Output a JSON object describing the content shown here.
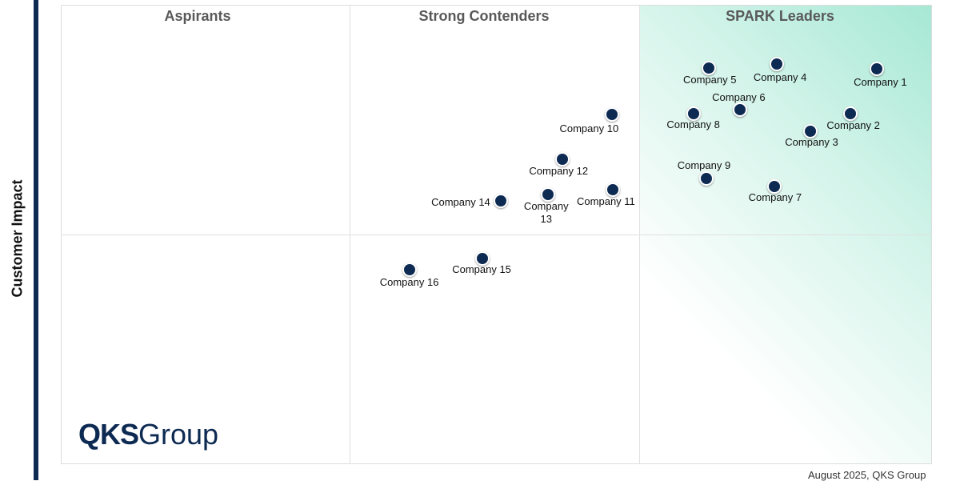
{
  "chart_data": {
    "type": "scatter",
    "title": "",
    "xlabel": "",
    "ylabel": "Customer Impact",
    "xlim": [
      0,
      100
    ],
    "ylim": [
      0,
      100
    ],
    "grid": true,
    "quadrants": [
      "Aspirants",
      "Strong Contenders",
      "SPARK Leaders"
    ],
    "points": [
      {
        "label": "Company 1",
        "x": 93.7,
        "y": 86.1
      },
      {
        "label": "Company 2",
        "x": 90.6,
        "y": 76.3
      },
      {
        "label": "Company 3",
        "x": 86.0,
        "y": 72.5
      },
      {
        "label": "Company 4",
        "x": 82.2,
        "y": 87.1
      },
      {
        "label": "Company 5",
        "x": 74.4,
        "y": 86.2
      },
      {
        "label": "Company 6",
        "x": 78.0,
        "y": 77.2
      },
      {
        "label": "Company 7",
        "x": 81.9,
        "y": 60.5
      },
      {
        "label": "Company 8",
        "x": 72.6,
        "y": 76.3
      },
      {
        "label": "Company 9",
        "x": 74.1,
        "y": 62.2
      },
      {
        "label": "Company 10",
        "x": 63.3,
        "y": 76.1
      },
      {
        "label": "Company 11",
        "x": 63.4,
        "y": 59.8
      },
      {
        "label": "Company 12",
        "x": 57.6,
        "y": 66.4
      },
      {
        "label": "Company 13",
        "x": 55.9,
        "y": 58.7
      },
      {
        "label": "Company 14",
        "x": 50.5,
        "y": 57.3
      },
      {
        "label": "Company 15",
        "x": 48.4,
        "y": 44.8
      },
      {
        "label": "Company 16",
        "x": 40.0,
        "y": 42.3
      }
    ],
    "colors": {
      "point": "#0d2a52",
      "leaders_highlight": "#a6e8d4"
    }
  },
  "logo": {
    "bold": "QKS",
    "light": "Group"
  },
  "footer": "August 2025, QKS Group"
}
